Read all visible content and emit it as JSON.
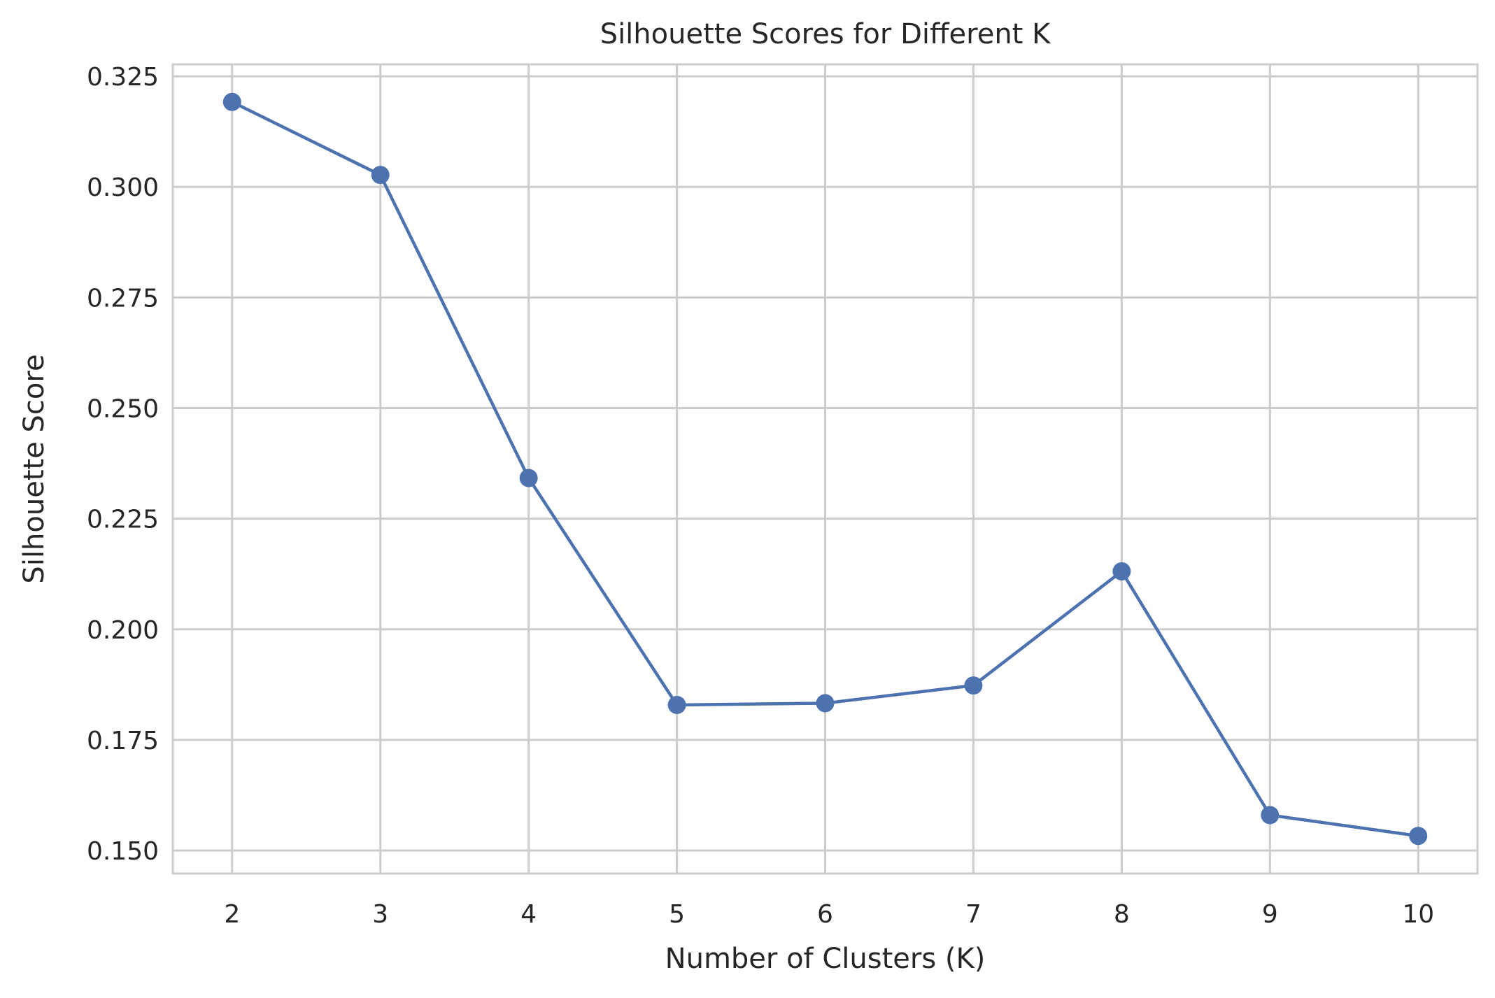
{
  "chart_data": {
    "type": "line",
    "title": "Silhouette Scores for Different K",
    "xlabel": "Number of Clusters (K)",
    "ylabel": "Silhouette Score",
    "x": [
      2,
      3,
      4,
      5,
      6,
      7,
      8,
      9,
      10
    ],
    "xticks": [
      "2",
      "3",
      "4",
      "5",
      "6",
      "7",
      "8",
      "9",
      "10"
    ],
    "yticks": [
      "0.150",
      "0.175",
      "0.200",
      "0.225",
      "0.250",
      "0.275",
      "0.300",
      "0.325"
    ],
    "xlim": [
      1.6,
      10.4
    ],
    "ylim": [
      0.1448,
      0.3277
    ],
    "series": [
      {
        "values": [
          0.3192,
          0.3027,
          0.2342,
          0.1829,
          0.1833,
          0.1873,
          0.2131,
          0.158,
          0.1533
        ],
        "color": "#4c72b0",
        "marker": "circle"
      }
    ],
    "grid": true,
    "legend": "none"
  }
}
